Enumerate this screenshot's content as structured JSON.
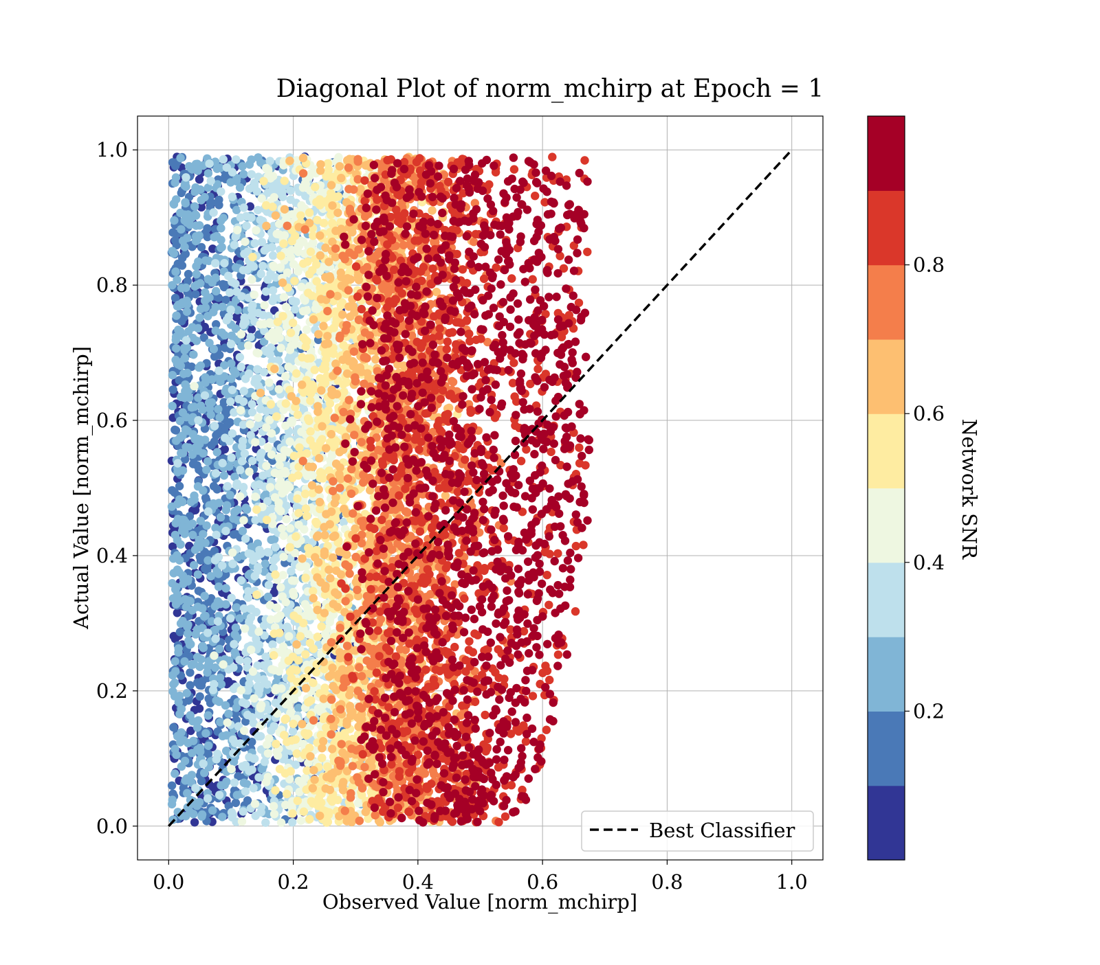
{
  "chart_data": {
    "type": "scatter",
    "title": "Diagonal Plot of norm_mchirp at Epoch = 1",
    "xlabel": "Observed Value [norm_mchirp]",
    "ylabel": "Actual Value [norm_mchirp]",
    "xlim": [
      -0.05,
      1.05
    ],
    "ylim": [
      -0.05,
      1.05
    ],
    "x_ticks": [
      "0.0",
      "0.2",
      "0.4",
      "0.6",
      "0.8",
      "1.0"
    ],
    "y_ticks": [
      "0.0",
      "0.2",
      "0.4",
      "0.6",
      "0.8",
      "1.0"
    ],
    "grid": true,
    "legend": {
      "placement": "lower right",
      "entries": [
        "Best Classifier"
      ]
    },
    "reference_line": {
      "name": "Best Classifier",
      "x": [
        0,
        1
      ],
      "y": [
        0,
        1
      ],
      "style": "dashed",
      "color": "#000000"
    },
    "colorbar": {
      "label": "Network SNR",
      "range": [
        0,
        1
      ],
      "ticks": [
        "0.2",
        "0.4",
        "0.6",
        "0.8"
      ],
      "tick_values": [
        0.2,
        0.4,
        0.6,
        0.8
      ],
      "colors": [
        "#313695",
        "#4a79b7",
        "#80b5d6",
        "#bee0ec",
        "#eef7e1",
        "#feeca1",
        "#fdbf71",
        "#f47e4b",
        "#da372a",
        "#a50026"
      ]
    },
    "point_cloud": {
      "description_level_bands": [
        {
          "snr": 0.05,
          "x_range": [
            0.0,
            0.22
          ],
          "y_range": [
            0.0,
            1.0
          ]
        },
        {
          "snr": 0.15,
          "x_range": [
            0.0,
            0.24
          ],
          "y_range": [
            0.05,
            1.0
          ]
        },
        {
          "snr": 0.25,
          "x_range": [
            0.0,
            0.28
          ],
          "y_range": [
            0.0,
            1.0
          ]
        },
        {
          "snr": 0.35,
          "x_range": [
            0.05,
            0.32
          ],
          "y_range": [
            0.0,
            1.0
          ]
        },
        {
          "snr": 0.45,
          "x_range": [
            0.15,
            0.33
          ],
          "y_range": [
            0.0,
            1.0
          ]
        },
        {
          "snr": 0.55,
          "x_range": [
            0.18,
            0.36
          ],
          "y_range": [
            0.0,
            1.0
          ]
        },
        {
          "snr": 0.65,
          "x_range": [
            0.22,
            0.39
          ],
          "y_range": [
            0.0,
            1.0
          ]
        },
        {
          "snr": 0.75,
          "x_range": [
            0.26,
            0.44
          ],
          "y_range": [
            0.0,
            1.0
          ]
        },
        {
          "snr": 0.85,
          "x_range": [
            0.28,
            0.52
          ],
          "y_range": [
            0.0,
            1.0
          ]
        },
        {
          "snr": 0.95,
          "x_range": [
            0.3,
            0.67
          ],
          "y_range": [
            0.0,
            1.0
          ]
        }
      ]
    }
  }
}
